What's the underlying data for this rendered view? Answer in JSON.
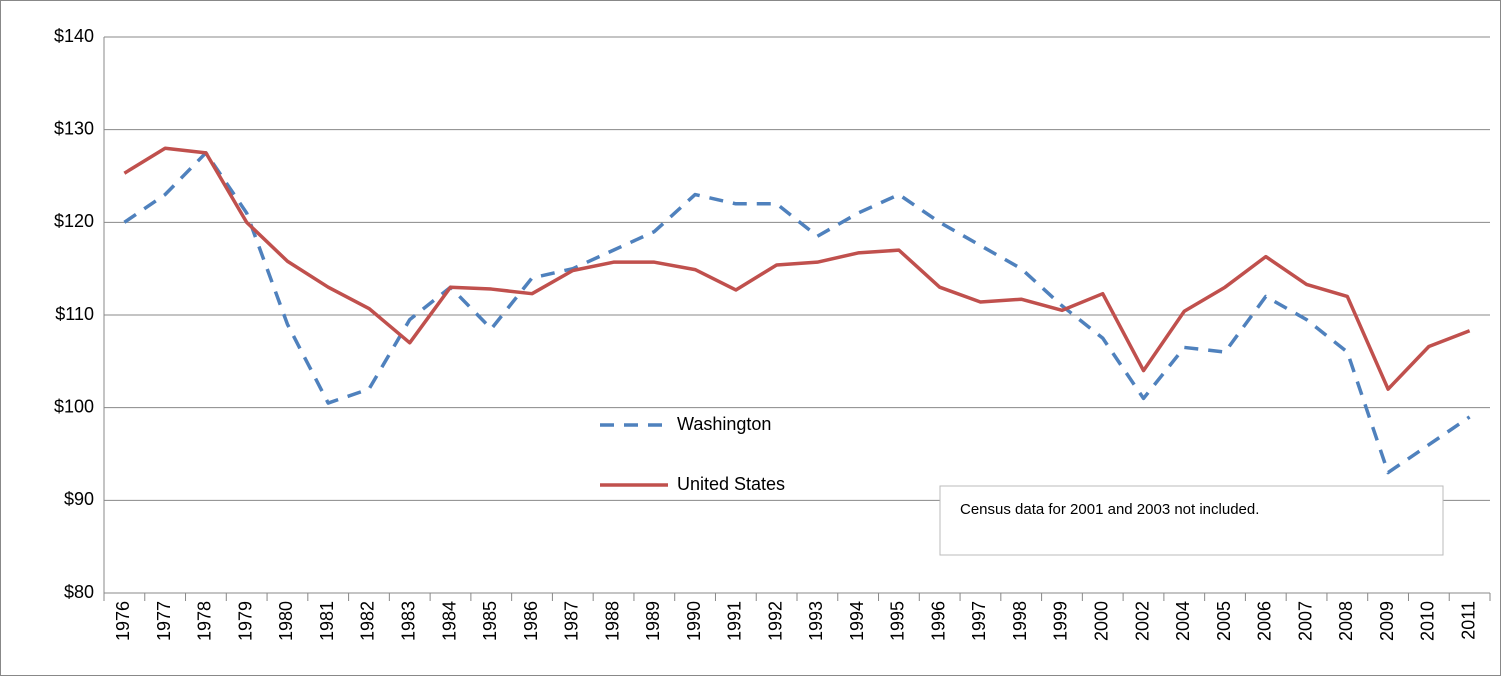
{
  "chart_data": {
    "type": "line",
    "categories": [
      "1976",
      "1977",
      "1978",
      "1979",
      "1980",
      "1981",
      "1982",
      "1983",
      "1984",
      "1985",
      "1986",
      "1987",
      "1988",
      "1989",
      "1990",
      "1991",
      "1992",
      "1993",
      "1994",
      "1995",
      "1996",
      "1997",
      "1998",
      "1999",
      "2000",
      "2002",
      "2004",
      "2005",
      "2006",
      "2007",
      "2008",
      "2009",
      "2010",
      "2011"
    ],
    "series": [
      {
        "name": "Washington",
        "color": "#4f81bd",
        "dashed": true,
        "values": [
          120,
          123,
          127.5,
          121,
          109,
          100.5,
          102,
          109.5,
          113,
          108.5,
          114,
          115,
          117,
          119,
          123,
          122,
          122,
          118.5,
          121,
          123,
          120,
          117.5,
          115,
          111,
          107.5,
          101,
          106.5,
          106,
          112,
          109.5,
          106,
          93,
          96,
          99
        ]
      },
      {
        "name": "United States",
        "color": "#c0504d",
        "dashed": false,
        "values": [
          125.3,
          128,
          127.5,
          120,
          115.8,
          113,
          110.7,
          107,
          113,
          112.8,
          112.3,
          114.8,
          115.7,
          115.7,
          114.9,
          112.7,
          115.4,
          115.7,
          116.7,
          117,
          113,
          111.4,
          111.7,
          110.5,
          112.3,
          104,
          110.4,
          113,
          116.3,
          113.3,
          112,
          102,
          106.6,
          108.3
        ]
      }
    ],
    "ylim": [
      80,
      140
    ],
    "yticks": [
      {
        "value": 80,
        "label": "$80"
      },
      {
        "value": 90,
        "label": "$90"
      },
      {
        "value": 100,
        "label": "$100"
      },
      {
        "value": 110,
        "label": "$110"
      },
      {
        "value": 120,
        "label": "$120"
      },
      {
        "value": 130,
        "label": "$130"
      },
      {
        "value": 140,
        "label": "$140"
      }
    ],
    "grid": true,
    "annotation": "Census data for 2001 and 2003 not included."
  }
}
